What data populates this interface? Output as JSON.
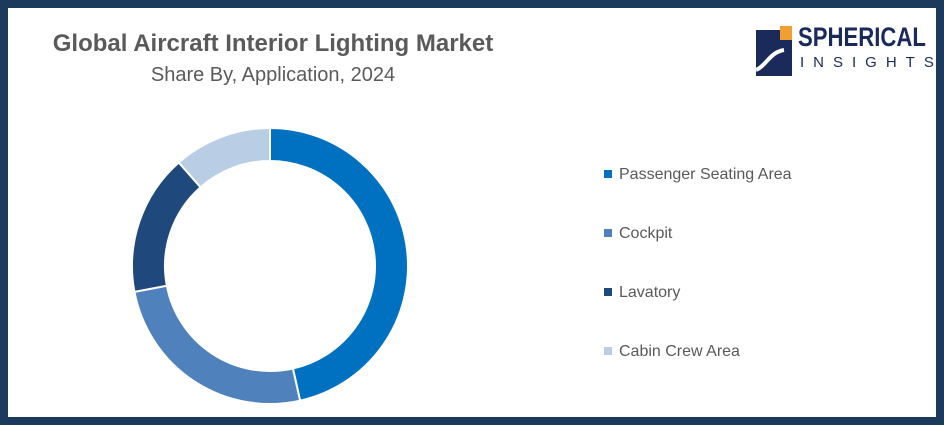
{
  "chart_data": {
    "type": "pie",
    "donut": true,
    "title": "Global Aircraft Interior Lighting Market",
    "subtitle": "Share By, Application, 2024",
    "categories": [
      "Passenger Seating Area",
      "Cockpit",
      "Lavatory",
      "Cabin Crew Area"
    ],
    "values": [
      46.5,
      25.5,
      16.5,
      11.5
    ],
    "colors": [
      "#0070c0",
      "#4f81bd",
      "#1f497d",
      "#b9cde5"
    ],
    "legend_placement": "right"
  },
  "logo": {
    "line1": "SPHERICAL",
    "line2": "INSIGHTS"
  }
}
